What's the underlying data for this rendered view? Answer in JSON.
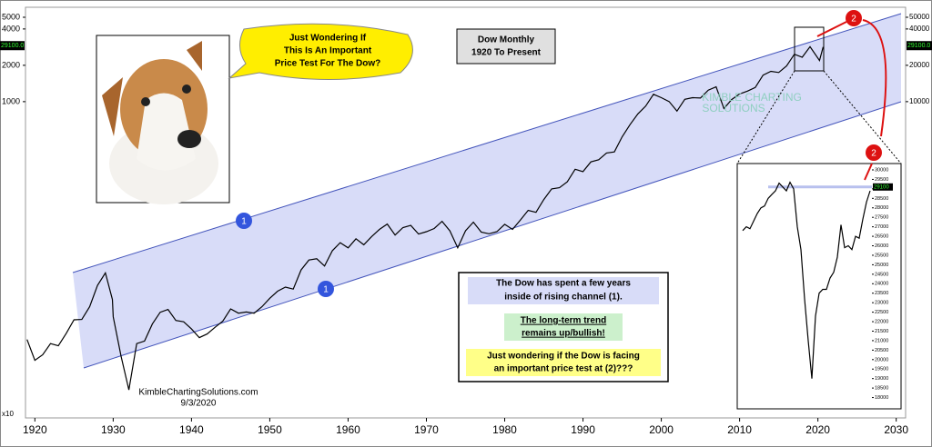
{
  "chart_data": [
    {
      "type": "line",
      "title": "Dow Monthly",
      "subtitle": "1920 To Present",
      "log_scale": true,
      "color": "#000000",
      "channel_color": "#d8dcf8",
      "x": [
        1919,
        1920,
        1921,
        1922,
        1923,
        1924,
        1925,
        1926,
        1927,
        1928,
        1929,
        1929.9,
        1930,
        1931,
        1932,
        1933,
        1934,
        1935,
        1936,
        1937,
        1938,
        1939,
        1940,
        1941,
        1942,
        1943,
        1944,
        1945,
        1946,
        1947,
        1948,
        1949,
        1950,
        1951,
        1952,
        1953,
        1954,
        1955,
        1956,
        1957,
        1958,
        1959,
        1960,
        1961,
        1962,
        1963,
        1964,
        1965,
        1966,
        1967,
        1968,
        1969,
        1970,
        1971,
        1972,
        1973,
        1974,
        1975,
        1976,
        1977,
        1978,
        1979,
        1980,
        1981,
        1982,
        1983,
        1984,
        1985,
        1986,
        1987,
        1988,
        1989,
        1990,
        1991,
        1992,
        1993,
        1994,
        1995,
        1996,
        1997,
        1998,
        1999,
        2000,
        2001,
        2002,
        2003,
        2004,
        2005,
        2006,
        2007,
        2008,
        2009,
        2010,
        2011,
        2012,
        2013,
        2014,
        2015,
        2016,
        2017,
        2018,
        2019,
        2020.2,
        2020.67
      ],
      "values": [
        107,
        72,
        80,
        99,
        95,
        120,
        156,
        157,
        200,
        300,
        381,
        230,
        165,
        78,
        41,
        99,
        104,
        144,
        180,
        190,
        154,
        150,
        131,
        111,
        119,
        135,
        152,
        192,
        177,
        181,
        177,
        200,
        235,
        269,
        291,
        280,
        404,
        488,
        500,
        435,
        583,
        679,
        615,
        731,
        652,
        762,
        874,
        969,
        786,
        905,
        943,
        800,
        838,
        890,
        1020,
        850,
        616,
        852,
        1004,
        831,
        805,
        838,
        963,
        875,
        1046,
        1258,
        1211,
        1546,
        1895,
        1938,
        2168,
        2753,
        2633,
        3168,
        3301,
        3754,
        3834,
        5117,
        6448,
        7908,
        9181,
        11497,
        10787,
        10021,
        8341,
        10453,
        10783,
        10717,
        12463,
        13264,
        8776,
        10428,
        11577,
        12217,
        13104,
        16576,
        17823,
        17425,
        19762,
        24719,
        23327,
        28538,
        21917,
        28430
      ],
      "xlim": [
        1918.8,
        2031.2
      ],
      "ylim": [
        24,
        60500
      ],
      "xticks": [
        1920,
        1930,
        1940,
        1950,
        1960,
        1970,
        1980,
        1990,
        2000,
        2010,
        2020,
        2030
      ],
      "yticks": [
        50000,
        40000,
        20000,
        10000
      ],
      "left_yticks": [
        {
          "value": 50000,
          "label": "5000"
        },
        {
          "value": 40000,
          "label": "4000"
        },
        {
          "value": 20000,
          "label": "2000"
        },
        {
          "value": 10000,
          "label": "1000"
        }
      ],
      "left_axis_multiplier": "x10",
      "last_price": {
        "value": 29100,
        "label": "29100.0"
      },
      "channel_label": "1",
      "test_label": "2",
      "watermark": [
        "KIMBLE CHARTING",
        "SOLUTIONS"
      ],
      "speech": [
        "Just Wondering If",
        "This Is An Important",
        "Price Test For The Dow?"
      ],
      "notes": {
        "channel": [
          "The Dow has spent a few years",
          "inside of rising channel (1)."
        ],
        "trend": [
          "The long-term trend",
          "remains up/bullish!"
        ],
        "question": [
          "Just wondering if the Dow is facing",
          "an important price test at (2)???"
        ]
      },
      "source": "KimbleChartingSolutions.com",
      "date": "9/3/2020"
    },
    {
      "type": "line",
      "color": "#000000",
      "values": [
        26800,
        27000,
        26900,
        27300,
        27700,
        28000,
        28100,
        28500,
        28700,
        28900,
        29300,
        29100,
        28900,
        29350,
        29000,
        27000,
        25800,
        23200,
        21000,
        19000,
        22300,
        23500,
        23700,
        23700,
        24300,
        24600,
        25400,
        27100,
        25900,
        26000,
        25800,
        26500,
        26400,
        27400,
        28300,
        28900
      ],
      "ylim": [
        17500,
        30335
      ],
      "yticks": [
        30000,
        29500,
        29000,
        28500,
        28000,
        27500,
        27000,
        26500,
        26000,
        25500,
        25000,
        24500,
        24000,
        23500,
        23000,
        22500,
        22000,
        21500,
        21000,
        20500,
        20000,
        19500,
        19000,
        18500,
        18000
      ],
      "last_price": {
        "value": 29100,
        "label": "29100"
      },
      "test_label": "2"
    }
  ]
}
